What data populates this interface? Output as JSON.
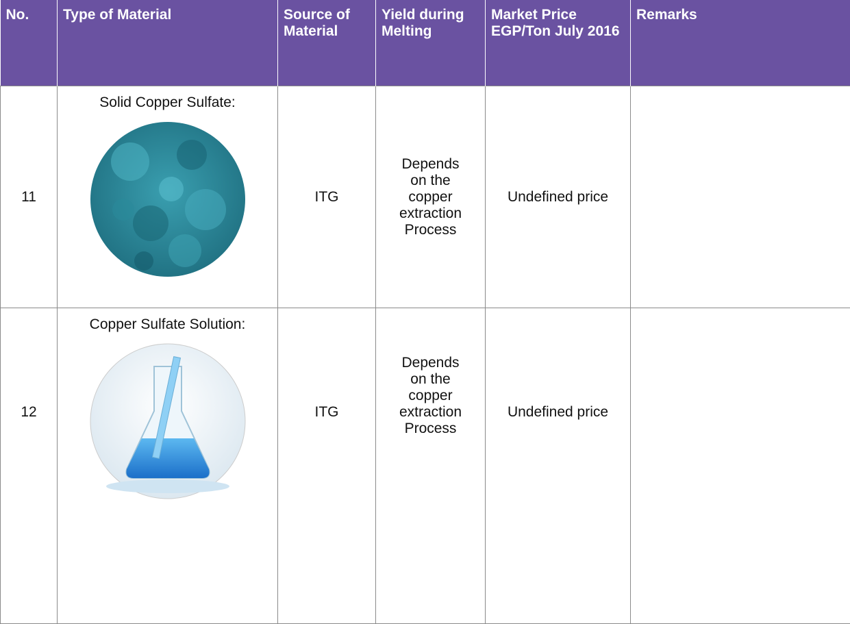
{
  "table": {
    "headers": [
      "No.",
      "Type of Material",
      "Source of Material",
      "Yield during Melting",
      "Market Price EGP/Ton July 2016",
      "Remarks"
    ],
    "rows": [
      {
        "no": 11,
        "material": "Solid Copper Sulfate:",
        "source": "ITG",
        "yield": "Depends on the copper extraction Process",
        "price": "Undefined price"
      },
      {
        "no": 12,
        "material": "Copper Sulfate Solution:",
        "source": "ITG",
        "yield": "Depends on the copper extraction Process",
        "price": "Undefined price"
      }
    ]
  }
}
